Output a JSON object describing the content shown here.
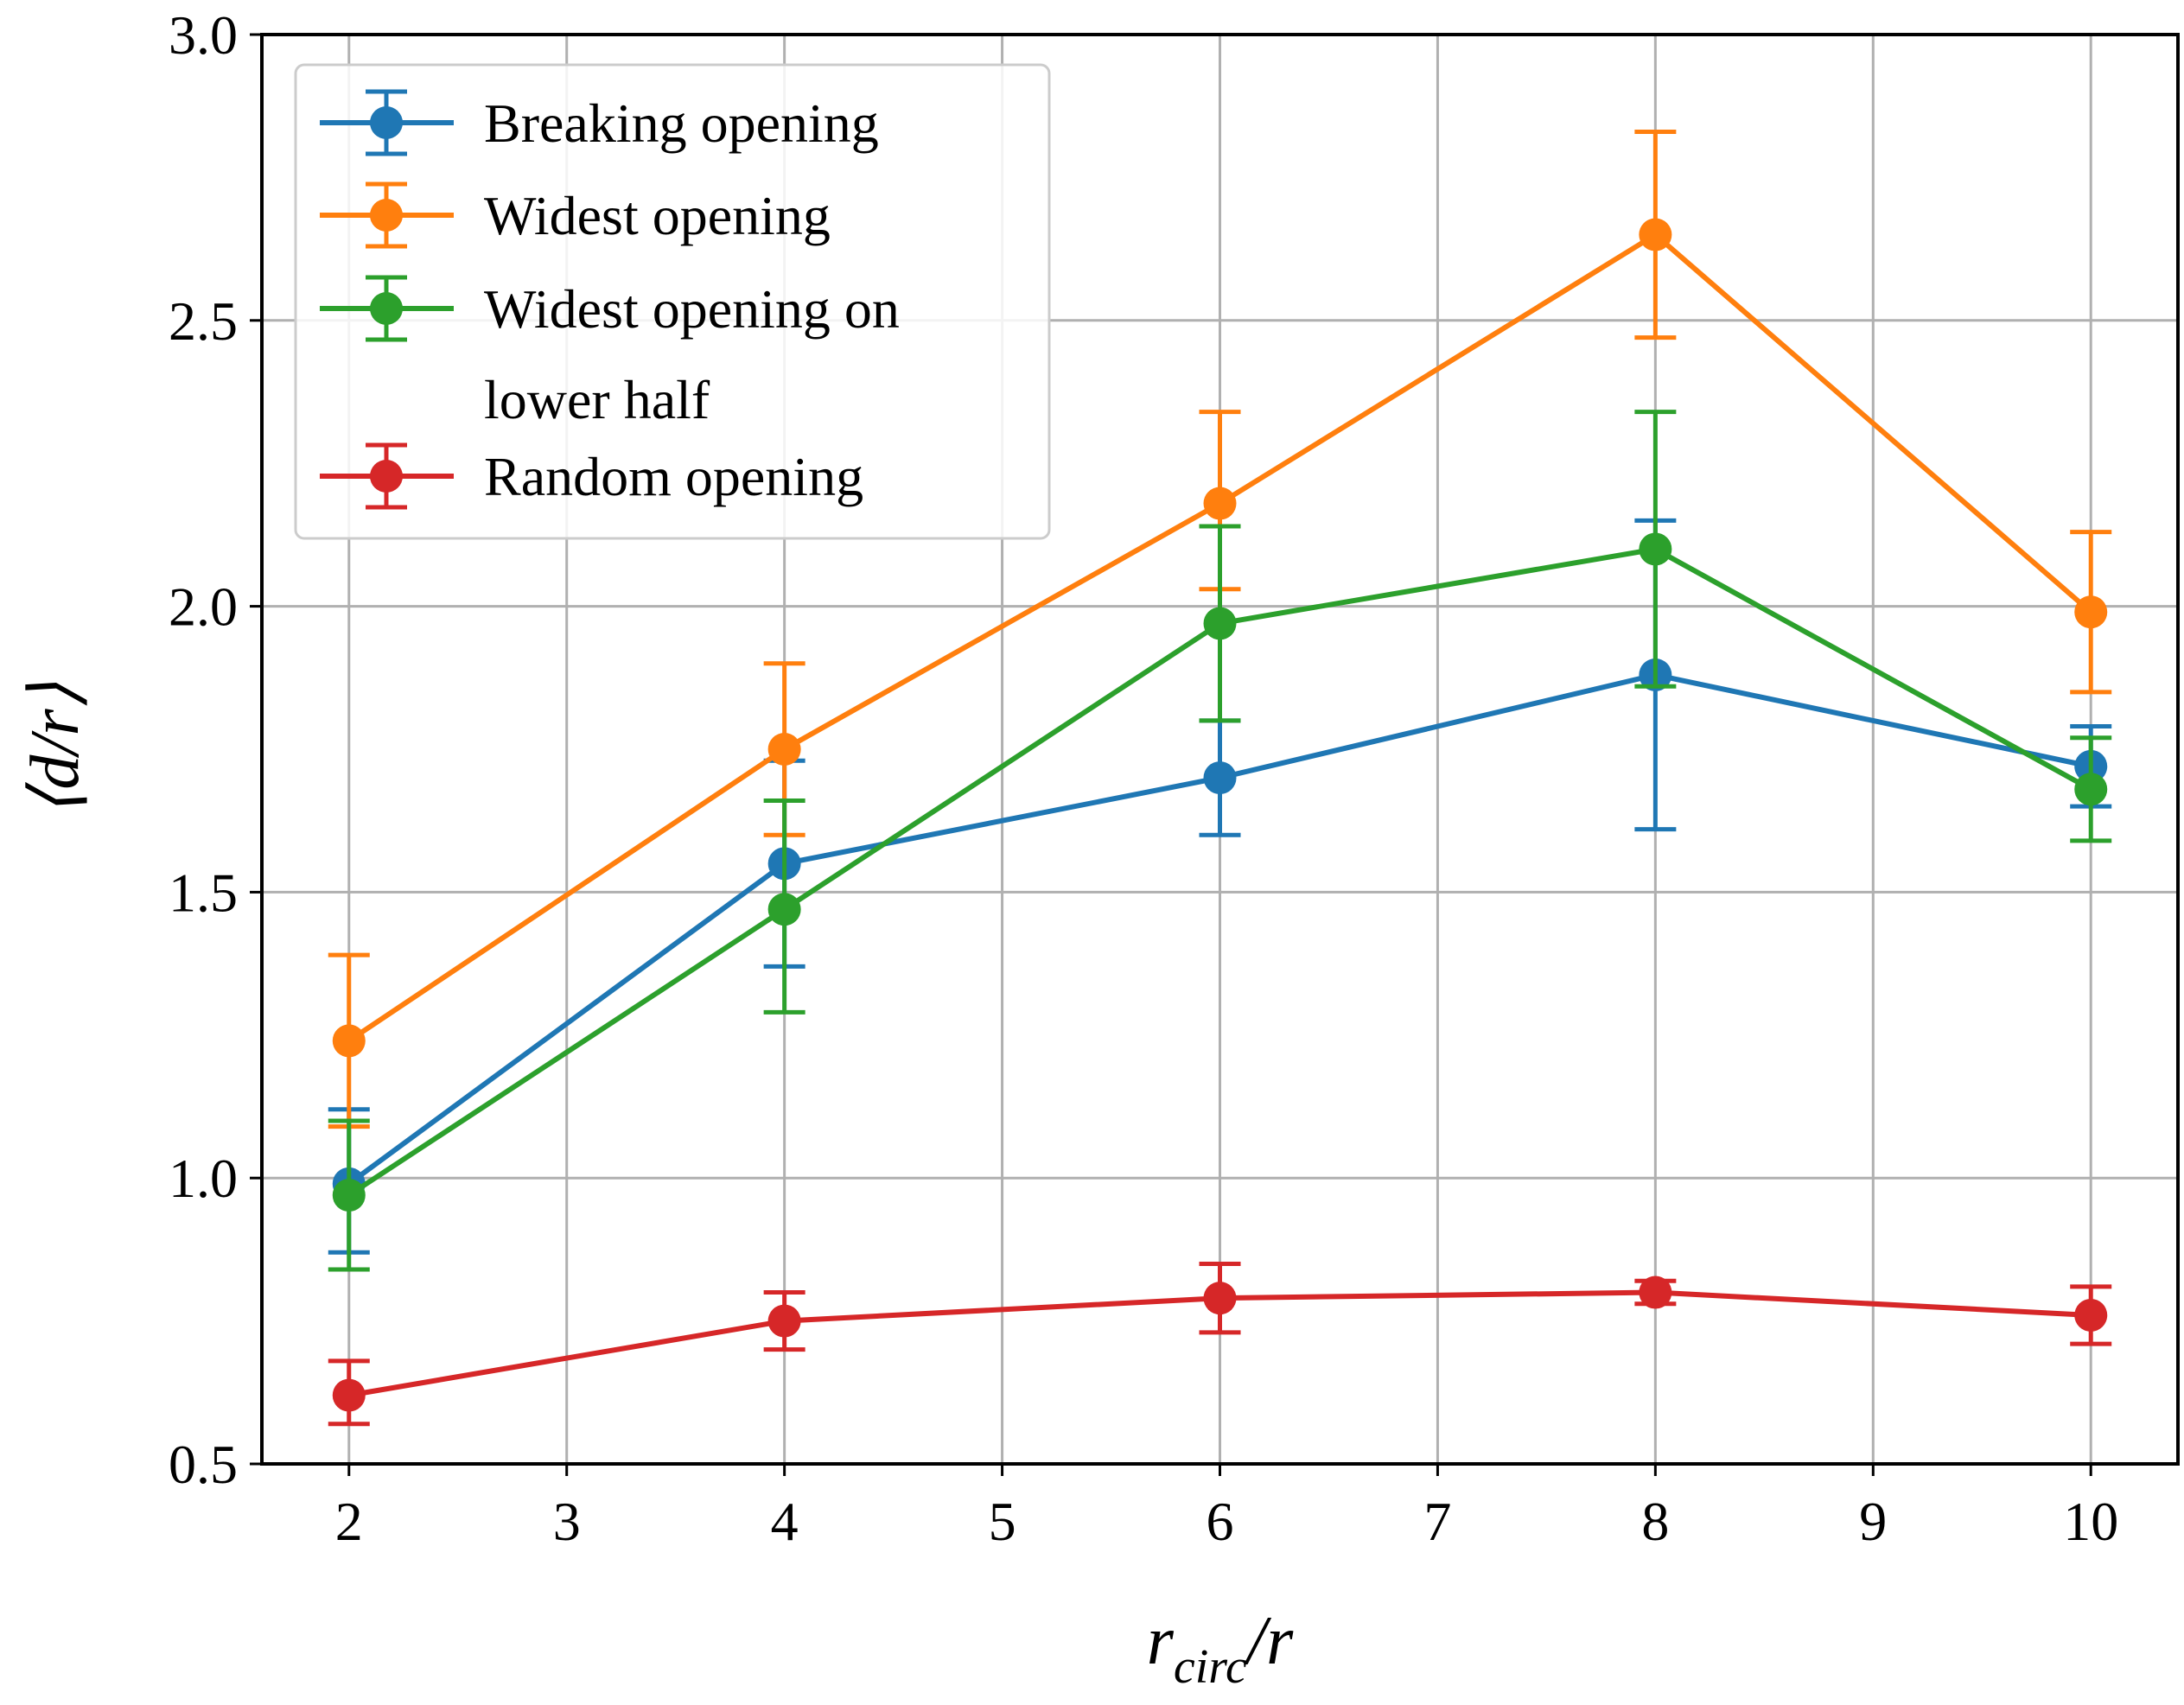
{
  "chart_data": {
    "type": "line",
    "title": "",
    "xlabel": {
      "main": "r",
      "sub": "circ",
      "rest": "/r"
    },
    "ylabel": "⟨d/r⟩",
    "xlim": [
      1.6,
      10.4
    ],
    "ylim": [
      0.5,
      3.0
    ],
    "xticks": [
      2,
      3,
      4,
      5,
      6,
      7,
      8,
      9,
      10
    ],
    "xtick_labels": [
      "2",
      "3",
      "4",
      "5",
      "6",
      "7",
      "8",
      "9",
      "10"
    ],
    "yticks": [
      0.5,
      1.0,
      1.5,
      2.0,
      2.5,
      3.0
    ],
    "ytick_labels": [
      "0.5",
      "1.0",
      "1.5",
      "2.0",
      "2.5",
      "3.0"
    ],
    "grid": true,
    "legend_position": "top-left",
    "x": [
      2,
      4,
      6,
      8,
      10
    ],
    "series": [
      {
        "name": "Breaking opening",
        "color": "#1f77b4",
        "values": [
          0.99,
          1.55,
          1.7,
          1.88,
          1.72
        ],
        "err_low": [
          0.87,
          1.37,
          1.6,
          1.61,
          1.65
        ],
        "err_high": [
          1.12,
          1.73,
          1.8,
          2.15,
          1.79
        ]
      },
      {
        "name": "Widest opening",
        "color": "#ff7f0e",
        "values": [
          1.24,
          1.75,
          2.18,
          2.65,
          1.99
        ],
        "err_low": [
          1.09,
          1.6,
          2.03,
          2.47,
          1.85
        ],
        "err_high": [
          1.39,
          1.9,
          2.34,
          2.83,
          2.13
        ]
      },
      {
        "name": "Widest opening on lower half",
        "color": "#2ca02c",
        "values": [
          0.97,
          1.47,
          1.97,
          2.1,
          1.68
        ],
        "err_low": [
          0.84,
          1.29,
          1.8,
          1.86,
          1.59
        ],
        "err_high": [
          1.1,
          1.66,
          2.14,
          2.34,
          1.77
        ]
      },
      {
        "name": "Random opening",
        "color": "#d62728",
        "values": [
          0.62,
          0.75,
          0.79,
          0.8,
          0.76
        ],
        "err_low": [
          0.57,
          0.7,
          0.73,
          0.78,
          0.71
        ],
        "err_high": [
          0.68,
          0.8,
          0.85,
          0.82,
          0.81
        ]
      }
    ],
    "legend_lines": [
      [
        "Breaking opening"
      ],
      [
        "Widest opening"
      ],
      [
        "Widest opening on",
        "lower half"
      ],
      [
        "Random opening"
      ]
    ]
  }
}
